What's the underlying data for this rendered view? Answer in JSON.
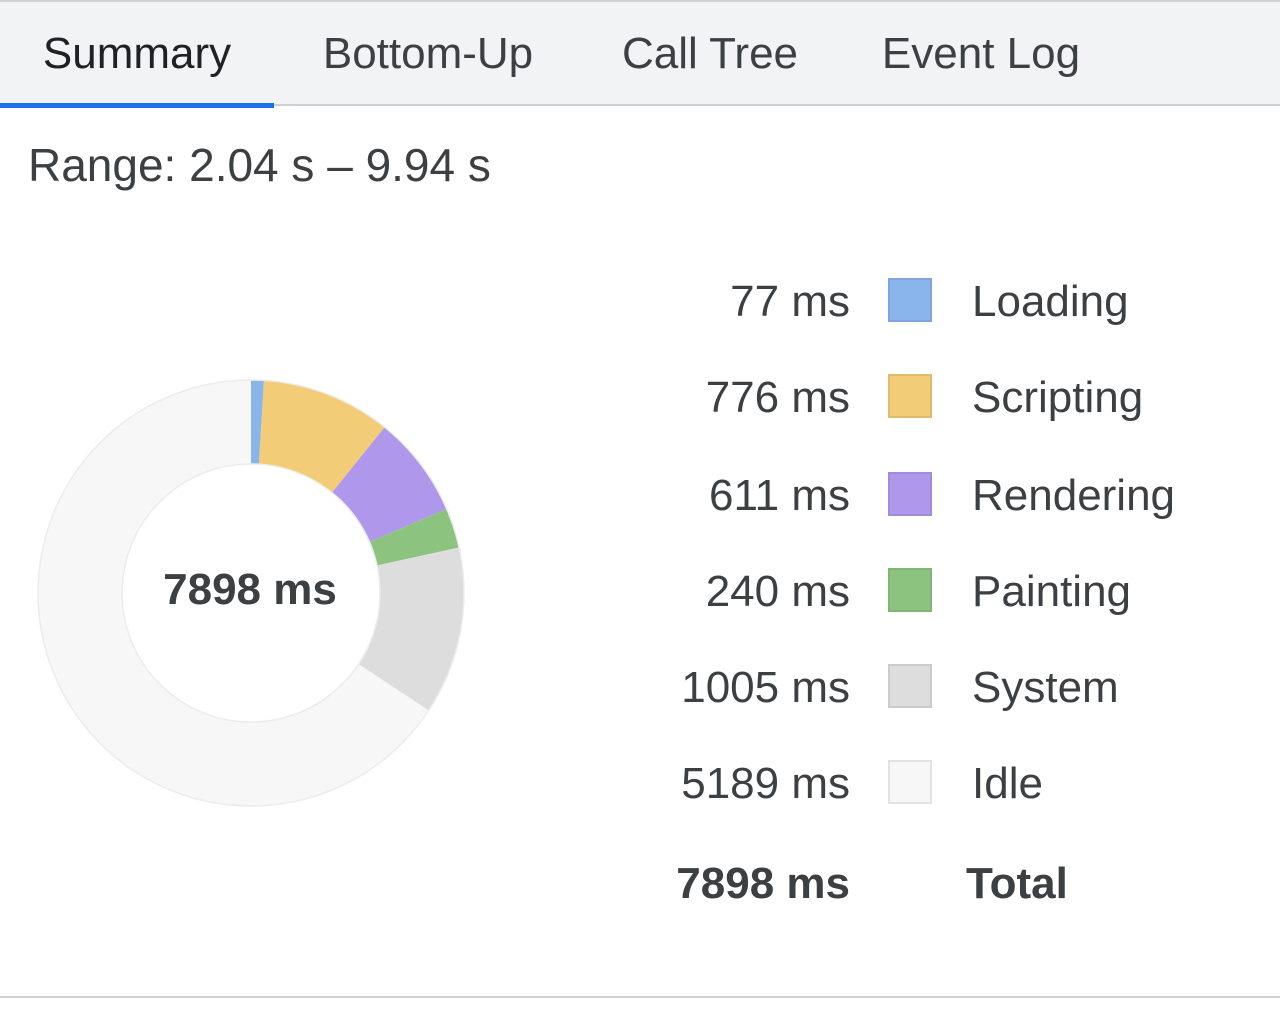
{
  "tabs": [
    {
      "label": "Summary",
      "selected": true
    },
    {
      "label": "Bottom-Up",
      "selected": false
    },
    {
      "label": "Call Tree",
      "selected": false
    },
    {
      "label": "Event Log",
      "selected": false
    }
  ],
  "range_text": "Range: 2.04 s – 9.94 s",
  "summary": {
    "total_label": "7898 ms",
    "categories": [
      {
        "name": "Loading",
        "value_label": "77 ms",
        "ms": 77,
        "color": "#8ab4ec"
      },
      {
        "name": "Scripting",
        "value_label": "776 ms",
        "ms": 776,
        "color": "#f2cc77"
      },
      {
        "name": "Rendering",
        "value_label": "611 ms",
        "ms": 611,
        "color": "#af98ec"
      },
      {
        "name": "Painting",
        "value_label": "240 ms",
        "ms": 240,
        "color": "#8cc47f"
      },
      {
        "name": "System",
        "value_label": "1005 ms",
        "ms": 1005,
        "color": "#dddddd"
      },
      {
        "name": "Idle",
        "value_label": "5189 ms",
        "ms": 5189,
        "color": "#f7f7f7"
      }
    ],
    "total_row": {
      "value_label": "7898 ms",
      "name": "Total"
    }
  }
}
